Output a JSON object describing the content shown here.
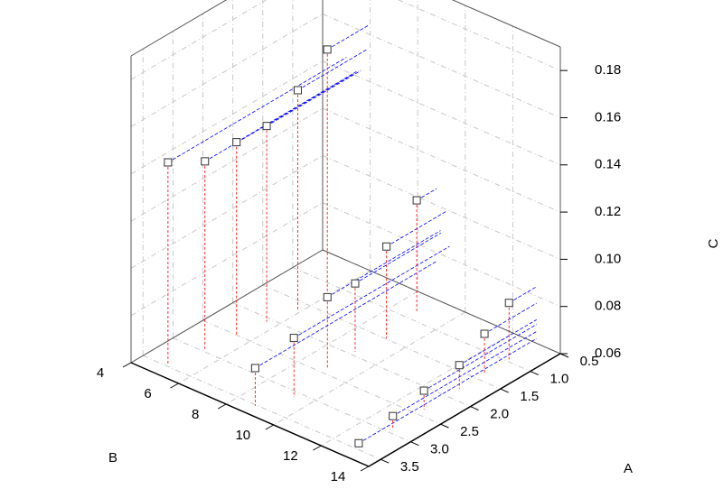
{
  "chart_data": {
    "type": "scatter3d",
    "x_label": "A",
    "y_label": "B",
    "z_label": "C",
    "x": [
      3.48,
      2.97,
      2.51,
      2.07,
      1.65,
      1.2,
      3.52,
      3.1,
      2.39,
      1.93,
      1.49,
      0.83,
      3.47,
      2.9,
      2.38,
      1.79,
      1.37,
      0.96
    ],
    "y": [
      5,
      5.27,
      5.44,
      5.6,
      5.85,
      5.96,
      8.77,
      9.34,
      8.96,
      8.97,
      9.18,
      8.79,
      13,
      13,
      13,
      13,
      13,
      13
    ],
    "z": [
      0.146,
      0.14,
      0.142,
      0.143,
      0.153,
      0.164,
      0.076,
      0.085,
      0.09,
      0.089,
      0.099,
      0.107,
      0.062,
      0.065,
      0.068,
      0.07,
      0.077,
      0.084
    ],
    "xlim": [
      0.5,
      3.7
    ],
    "ylim": [
      4,
      14
    ],
    "zlim": [
      0.06,
      0.19
    ],
    "xticks": [
      0.5,
      {
        "value": 1,
        "label": "1.0"
      },
      1.5,
      {
        "value": 2,
        "label": "2.0"
      },
      2.5,
      {
        "value": 3,
        "label": "3.0"
      },
      3.5
    ],
    "yticks": [
      4,
      6,
      8,
      10,
      12,
      14
    ],
    "zticks": [
      0.06,
      0.08,
      {
        "value": 0.1,
        "label": "0.10"
      },
      0.12,
      0.14,
      0.16,
      0.18
    ],
    "grid": true,
    "marker_color": "#333333",
    "drop_line_color": "#ff0000",
    "projection_color": "#0000ff"
  }
}
